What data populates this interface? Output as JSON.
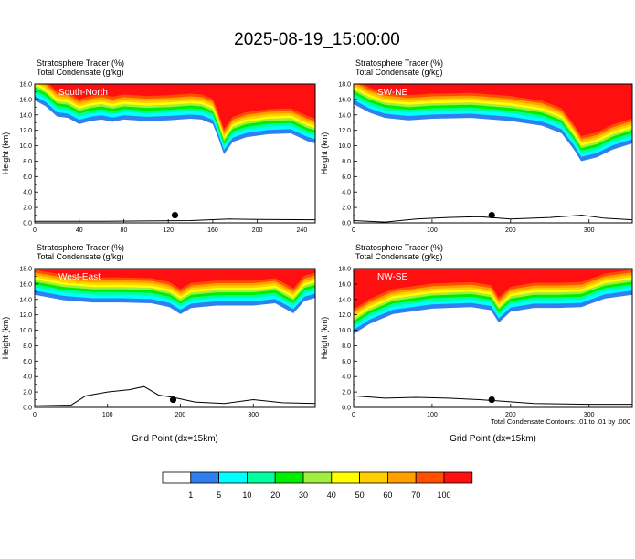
{
  "title": "2025-08-19_15:00:00",
  "footnote": "Total Condensate Contours: .01 to .01 by .000",
  "colorbar": {
    "levels": [
      "1",
      "5",
      "10",
      "20",
      "30",
      "40",
      "50",
      "60",
      "70",
      "100"
    ],
    "colors": [
      "#ffffff",
      "#2f7fef",
      "#00ffff",
      "#00ff9f",
      "#00ef00",
      "#9fef3f",
      "#ffff00",
      "#ffcf00",
      "#ff9f00",
      "#ff4f00",
      "#ff0f0f"
    ]
  },
  "chart_data": [
    {
      "type": "heatmap",
      "label": "South-North",
      "header": [
        "Stratosphere Tracer   (%)",
        "Total Condensate   (g/kg)"
      ],
      "ylabel": "Height (km)",
      "xlabel": "",
      "xlim": [
        0,
        252
      ],
      "ylim": [
        0,
        18
      ],
      "xticks": [
        0,
        40,
        80,
        120,
        160,
        200,
        240
      ],
      "yticks": [
        "0.0",
        "2.0",
        "4.0",
        "6.0",
        "8.0",
        "10.0",
        "12.0",
        "14.0",
        "16.0",
        "18.0"
      ],
      "marker_x": 126,
      "tropopause": [
        [
          0,
          15.9
        ],
        [
          10,
          15.1
        ],
        [
          20,
          13.8
        ],
        [
          30,
          13.6
        ],
        [
          40,
          12.8
        ],
        [
          50,
          13.2
        ],
        [
          60,
          13.4
        ],
        [
          70,
          13.1
        ],
        [
          80,
          13.4
        ],
        [
          100,
          13.2
        ],
        [
          120,
          13.3
        ],
        [
          140,
          13.5
        ],
        [
          150,
          13.4
        ],
        [
          160,
          12.8
        ],
        [
          165,
          11.0
        ],
        [
          170,
          8.9
        ],
        [
          178,
          10.5
        ],
        [
          190,
          11.1
        ],
        [
          210,
          11.5
        ],
        [
          230,
          11.6
        ],
        [
          245,
          10.6
        ],
        [
          252,
          10.3
        ]
      ],
      "terrain": [
        [
          0,
          0.2
        ],
        [
          60,
          0.2
        ],
        [
          100,
          0.25
        ],
        [
          140,
          0.3
        ],
        [
          175,
          0.5
        ],
        [
          200,
          0.45
        ],
        [
          252,
          0.4
        ]
      ]
    },
    {
      "type": "heatmap",
      "label": "SW-NE",
      "header": [
        "Stratosphere Tracer   (%)",
        "Total Condensate   (g/kg)"
      ],
      "ylabel": "Height (km)",
      "xlabel": "",
      "xlim": [
        0,
        355
      ],
      "ylim": [
        0,
        18
      ],
      "xticks": [
        0,
        100,
        200,
        300
      ],
      "yticks": [
        "0.0",
        "2.0",
        "4.0",
        "6.0",
        "8.0",
        "10.0",
        "12.0",
        "14.0",
        "16.0",
        "18.0"
      ],
      "marker_x": 176,
      "tropopause": [
        [
          0,
          15.4
        ],
        [
          20,
          14.3
        ],
        [
          40,
          13.6
        ],
        [
          70,
          13.3
        ],
        [
          100,
          13.5
        ],
        [
          150,
          13.6
        ],
        [
          200,
          13.2
        ],
        [
          240,
          12.6
        ],
        [
          265,
          11.6
        ],
        [
          280,
          9.6
        ],
        [
          290,
          8.0
        ],
        [
          310,
          8.5
        ],
        [
          330,
          9.5
        ],
        [
          355,
          10.3
        ]
      ],
      "terrain": [
        [
          0,
          0.3
        ],
        [
          40,
          0.1
        ],
        [
          80,
          0.5
        ],
        [
          120,
          0.7
        ],
        [
          160,
          0.8
        ],
        [
          200,
          0.5
        ],
        [
          250,
          0.7
        ],
        [
          290,
          1.0
        ],
        [
          320,
          0.6
        ],
        [
          355,
          0.4
        ]
      ]
    },
    {
      "type": "heatmap",
      "label": "West-East",
      "header": [
        "Stratosphere Tracer   (%)",
        "Total Condensate   (g/kg)"
      ],
      "ylabel": "Height (km)",
      "xlabel": "Grid Point (dx=15km)",
      "xlim": [
        0,
        385
      ],
      "ylim": [
        0,
        18
      ],
      "xticks": [
        0,
        100,
        200,
        300
      ],
      "yticks": [
        "0.0",
        "2.0",
        "4.0",
        "6.0",
        "8.0",
        "10.0",
        "12.0",
        "14.0",
        "16.0",
        "18.0"
      ],
      "marker_x": 190,
      "tropopause": [
        [
          0,
          14.6
        ],
        [
          40,
          13.9
        ],
        [
          80,
          13.6
        ],
        [
          120,
          13.6
        ],
        [
          160,
          13.5
        ],
        [
          185,
          13.0
        ],
        [
          200,
          12.1
        ],
        [
          215,
          12.9
        ],
        [
          250,
          13.2
        ],
        [
          300,
          13.2
        ],
        [
          330,
          13.5
        ],
        [
          355,
          12.2
        ],
        [
          370,
          13.8
        ],
        [
          385,
          14.2
        ]
      ],
      "terrain": [
        [
          0,
          0.2
        ],
        [
          50,
          0.3
        ],
        [
          70,
          1.5
        ],
        [
          100,
          2.0
        ],
        [
          130,
          2.3
        ],
        [
          150,
          2.7
        ],
        [
          170,
          1.6
        ],
        [
          190,
          1.3
        ],
        [
          220,
          0.7
        ],
        [
          260,
          0.5
        ],
        [
          300,
          1.0
        ],
        [
          340,
          0.6
        ],
        [
          385,
          0.5
        ]
      ]
    },
    {
      "type": "heatmap",
      "label": "NW-SE",
      "header": [
        "Stratosphere Tracer   (%)",
        "Total Condensate   (g/kg)"
      ],
      "ylabel": "Height (km)",
      "xlabel": "Grid Point (dx=15km)",
      "xlim": [
        0,
        355
      ],
      "ylim": [
        0,
        18
      ],
      "xticks": [
        0,
        100,
        200,
        300
      ],
      "yticks": [
        "0.0",
        "2.0",
        "4.0",
        "6.0",
        "8.0",
        "10.0",
        "12.0",
        "14.0",
        "16.0",
        "18.0"
      ],
      "marker_x": 176,
      "tropopause": [
        [
          0,
          9.5
        ],
        [
          20,
          10.8
        ],
        [
          50,
          12.1
        ],
        [
          100,
          12.8
        ],
        [
          150,
          13.0
        ],
        [
          175,
          12.6
        ],
        [
          185,
          11.0
        ],
        [
          200,
          12.4
        ],
        [
          230,
          12.9
        ],
        [
          260,
          12.9
        ],
        [
          290,
          13.0
        ],
        [
          320,
          14.1
        ],
        [
          355,
          14.6
        ]
      ],
      "terrain": [
        [
          0,
          1.5
        ],
        [
          40,
          1.2
        ],
        [
          80,
          1.3
        ],
        [
          120,
          1.2
        ],
        [
          160,
          1.0
        ],
        [
          190,
          0.8
        ],
        [
          230,
          0.5
        ],
        [
          300,
          0.4
        ],
        [
          355,
          0.4
        ]
      ]
    }
  ]
}
